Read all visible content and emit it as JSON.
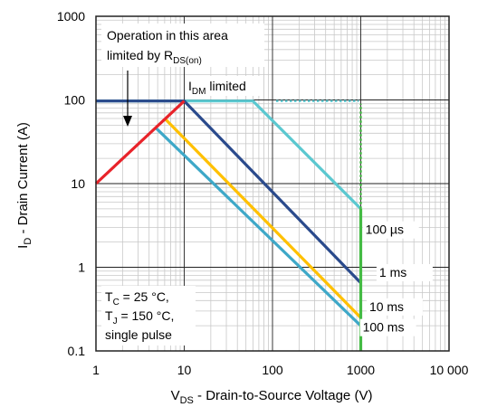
{
  "chart_data": {
    "type": "line",
    "title": "",
    "xlabel": {
      "main": "V",
      "sub": "DS",
      "rest": " - Drain-to-Source Voltage (V)"
    },
    "ylabel": {
      "main": "I",
      "sub": "D",
      "rest": " - Drain Current (A)"
    },
    "xscale": "log",
    "yscale": "log",
    "xlim": [
      1,
      10000
    ],
    "ylim": [
      0.1,
      1000
    ],
    "grid": true,
    "x_ticks": [
      {
        "value": 1,
        "label": "1"
      },
      {
        "value": 10,
        "label": "10"
      },
      {
        "value": 100,
        "label": "100"
      },
      {
        "value": 1000,
        "label": "1000"
      },
      {
        "value": 10000,
        "label": "10 000"
      }
    ],
    "y_ticks": [
      {
        "value": 0.1,
        "label": "0.1"
      },
      {
        "value": 1,
        "label": "1"
      },
      {
        "value": 10,
        "label": "10"
      },
      {
        "value": 100,
        "label": "100"
      },
      {
        "value": 1000,
        "label": "1000"
      }
    ],
    "series": [
      {
        "name": "100 µs",
        "color": "#5bc8d0",
        "style": "solid",
        "x": [
          1,
          60,
          1000
        ],
        "y": [
          97,
          97,
          5
        ]
      },
      {
        "name": "1 ms",
        "color": "#2a4a8c",
        "style": "solid",
        "x": [
          1,
          10,
          1000
        ],
        "y": [
          97,
          97,
          0.65
        ]
      },
      {
        "name": "10 ms",
        "color": "#ffc000",
        "style": "solid",
        "x": [
          6.2,
          1000
        ],
        "y": [
          58,
          0.25
        ]
      },
      {
        "name": "100 ms",
        "color": "#3ea8c8",
        "style": "solid",
        "x": [
          4.8,
          1000
        ],
        "y": [
          46,
          0.2
        ]
      },
      {
        "name": "RDS(on) limit",
        "color": "#e8232a",
        "style": "solid",
        "x": [
          1,
          10
        ],
        "y": [
          10,
          97
        ]
      },
      {
        "name": "BVDSS limit",
        "color": "#44bb44",
        "style": "solid",
        "x": [
          1000,
          1000
        ],
        "y": [
          0.1,
          5
        ]
      },
      {
        "name": "BVDSS limit dotted",
        "color": "#44bb44",
        "style": "dotted",
        "x": [
          1000,
          1000
        ],
        "y": [
          5,
          90
        ]
      },
      {
        "name": "IDM dotted",
        "color": "#5bc8d0",
        "style": "dotted",
        "x": [
          110,
          950
        ],
        "y": [
          97,
          97
        ]
      }
    ],
    "curve_labels": [
      {
        "text": "100 µs",
        "x": 1130,
        "y": 2.5
      },
      {
        "text": "1 ms",
        "x": 1620,
        "y": 0.77
      },
      {
        "text": "10 ms",
        "x": 1250,
        "y": 0.3
      },
      {
        "text": "100 ms",
        "x": 1050,
        "y": 0.17
      }
    ],
    "annotations": {
      "rds_line1": "Operation in this area",
      "rds_line2_main": "limited by R",
      "rds_line2_sub": "DS(on)",
      "idm_main": "I",
      "idm_sub": "DM",
      "idm_rest": " limited",
      "cond_tc_main": "T",
      "cond_tc_sub": "C",
      "cond_tc_rest": " = 25 °C,",
      "cond_tj_main": "T",
      "cond_tj_sub": "J",
      "cond_tj_rest": " = 150 °C,",
      "cond_pulse": "single pulse"
    },
    "colors": {
      "grid_major": "#222222",
      "grid_minor": "#c8c8c8",
      "arrow": "#000000"
    }
  }
}
